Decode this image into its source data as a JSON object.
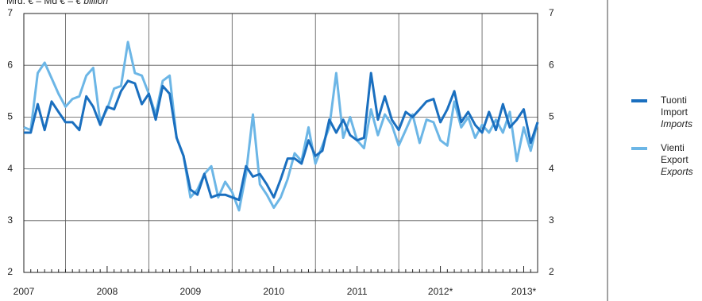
{
  "chart_data": {
    "type": "line",
    "title": "Mrd. € – Md € –",
    "title_en": "€ billion",
    "categories": [
      "2007",
      null,
      null,
      null,
      null,
      null,
      null,
      null,
      null,
      null,
      null,
      null,
      "2008",
      null,
      null,
      null,
      null,
      null,
      null,
      null,
      null,
      null,
      null,
      null,
      "2009",
      null,
      null,
      null,
      null,
      null,
      null,
      null,
      null,
      null,
      null,
      null,
      "2010",
      null,
      null,
      null,
      null,
      null,
      null,
      null,
      null,
      null,
      null,
      null,
      "2011",
      null,
      null,
      null,
      null,
      null,
      null,
      null,
      null,
      null,
      null,
      null,
      "2012*",
      null,
      null,
      null,
      null,
      null,
      null,
      null,
      null,
      null,
      null,
      null,
      "2013*",
      null,
      null
    ],
    "series": [
      {
        "name": [
          "Tuonti",
          "Import",
          "Imports"
        ],
        "color": "#1a6fbf",
        "values": [
          4.7,
          4.7,
          5.25,
          4.75,
          5.3,
          5.1,
          4.9,
          4.9,
          4.75,
          5.4,
          5.2,
          4.85,
          5.2,
          5.15,
          5.5,
          5.7,
          5.65,
          5.25,
          5.45,
          4.95,
          5.6,
          5.45,
          4.6,
          4.25,
          3.6,
          3.5,
          3.9,
          3.45,
          3.5,
          3.5,
          3.45,
          3.4,
          4.05,
          3.85,
          3.9,
          3.7,
          3.45,
          3.8,
          4.2,
          4.2,
          4.1,
          4.55,
          4.25,
          4.35,
          4.95,
          4.7,
          4.95,
          4.65,
          4.55,
          4.6,
          5.85,
          4.95,
          5.4,
          4.95,
          4.75,
          5.1,
          5.0,
          5.15,
          5.3,
          5.35,
          4.9,
          5.15,
          5.5,
          4.9,
          5.1,
          4.85,
          4.7,
          5.1,
          4.75,
          5.25,
          4.8,
          4.95,
          5.15,
          4.5,
          4.9
        ]
      },
      {
        "name": [
          "Vienti",
          "Export",
          "Exports"
        ],
        "color": "#6cb6e6",
        "values": [
          4.8,
          4.75,
          5.85,
          6.05,
          5.75,
          5.45,
          5.2,
          5.35,
          5.4,
          5.8,
          5.95,
          4.9,
          5.15,
          5.55,
          5.6,
          6.45,
          5.85,
          5.8,
          5.45,
          5.05,
          5.7,
          5.8,
          4.6,
          4.25,
          3.45,
          3.6,
          3.9,
          4.05,
          3.45,
          3.75,
          3.55,
          3.2,
          3.9,
          5.05,
          3.7,
          3.5,
          3.25,
          3.45,
          3.8,
          4.3,
          4.15,
          4.8,
          4.1,
          4.45,
          4.8,
          5.85,
          4.6,
          5.0,
          4.55,
          4.4,
          5.15,
          4.65,
          5.05,
          4.85,
          4.45,
          4.75,
          5.05,
          4.5,
          4.95,
          4.9,
          4.55,
          4.45,
          5.3,
          4.8,
          5.0,
          4.6,
          4.85,
          4.7,
          4.95,
          4.7,
          5.1,
          4.15,
          4.8,
          4.35,
          4.9
        ]
      }
    ],
    "ylim": [
      2,
      7
    ],
    "yticks": [
      2,
      3,
      4,
      5,
      6,
      7
    ],
    "grid": true
  }
}
